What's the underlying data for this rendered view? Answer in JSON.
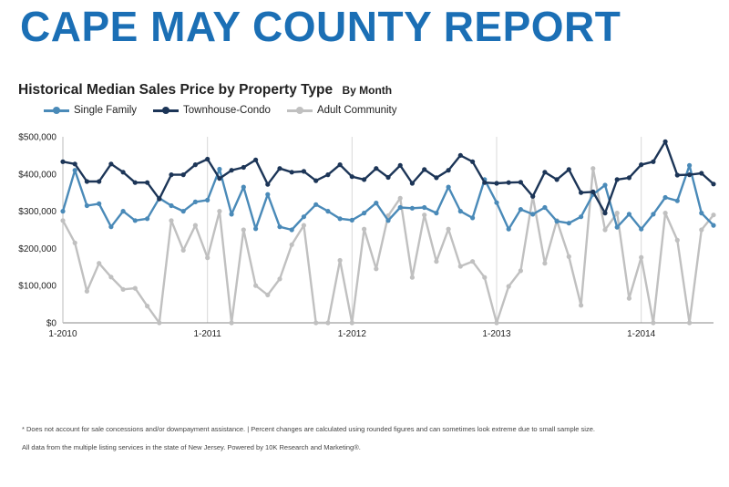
{
  "report_title": "CAPE MAY COUNTY REPORT",
  "footnotes": {
    "line1": "* Does not account for sale concessions and/or downpayment assistance. | Percent changes are calculated using rounded figures and can sometimes look extreme due to small sample size.",
    "line2": "All data from the multiple listing services in the state of New Jersey. Powered by 10K Research and Marketing®."
  },
  "chart_data": {
    "type": "line",
    "title": "Historical Median Sales Price by Property Type",
    "subtitle": "By Month",
    "xlabel": "",
    "ylabel": "",
    "x_start": "2010-01",
    "x_end": "2014-06",
    "x_tick_labels": [
      "1-2010",
      "1-2011",
      "1-2012",
      "1-2013",
      "1-2014"
    ],
    "y_tick_labels": [
      "$0",
      "$100,000",
      "$200,000",
      "$300,000",
      "$400,000",
      "$500,000"
    ],
    "ylim": [
      0,
      500000
    ],
    "grid": "vertical at each January",
    "legend_position": "top-left",
    "series": [
      {
        "name": "Single Family",
        "color": "#4a8ab8",
        "values": [
          300000,
          410000,
          315000,
          320000,
          258000,
          300000,
          275000,
          280000,
          335000,
          315000,
          300000,
          325000,
          330000,
          413000,
          292000,
          365000,
          253000,
          345000,
          258000,
          250000,
          285000,
          318000,
          300000,
          280000,
          276000,
          295000,
          322000,
          275000,
          310000,
          308000,
          310000,
          295000,
          365000,
          300000,
          282000,
          385000,
          323000,
          252000,
          305000,
          292000,
          310000,
          273000,
          268000,
          285000,
          345000,
          370000,
          257000,
          292000,
          252000,
          292000,
          337000,
          328000,
          423000,
          295000,
          262000
        ]
      },
      {
        "name": "Townhouse-Condo",
        "color": "#1c3557",
        "values": [
          433000,
          427000,
          380000,
          380000,
          427000,
          405000,
          377000,
          377000,
          333000,
          398000,
          398000,
          425000,
          440000,
          388000,
          410000,
          418000,
          438000,
          372000,
          415000,
          405000,
          407000,
          382000,
          398000,
          425000,
          393000,
          385000,
          415000,
          391000,
          423000,
          375000,
          412000,
          390000,
          410000,
          450000,
          433000,
          377000,
          375000,
          377000,
          378000,
          340000,
          405000,
          385000,
          412000,
          350000,
          352000,
          295000,
          385000,
          390000,
          425000,
          433000,
          487000,
          397000,
          398000,
          402000,
          373000
        ]
      },
      {
        "name": "Adult Community",
        "color": "#c0c0c0",
        "values": [
          275000,
          215000,
          85000,
          160000,
          123000,
          90000,
          93000,
          45000,
          0,
          275000,
          195000,
          262000,
          175000,
          300000,
          0,
          250000,
          100000,
          75000,
          118000,
          210000,
          262000,
          0,
          0,
          168000,
          0,
          252000,
          145000,
          288000,
          335000,
          122000,
          290000,
          165000,
          252000,
          152000,
          165000,
          122000,
          0,
          98000,
          140000,
          340000,
          160000,
          275000,
          178000,
          47000,
          415000,
          250000,
          295000,
          66000,
          176000,
          0,
          295000,
          222000,
          0,
          250000,
          290000
        ]
      }
    ]
  }
}
